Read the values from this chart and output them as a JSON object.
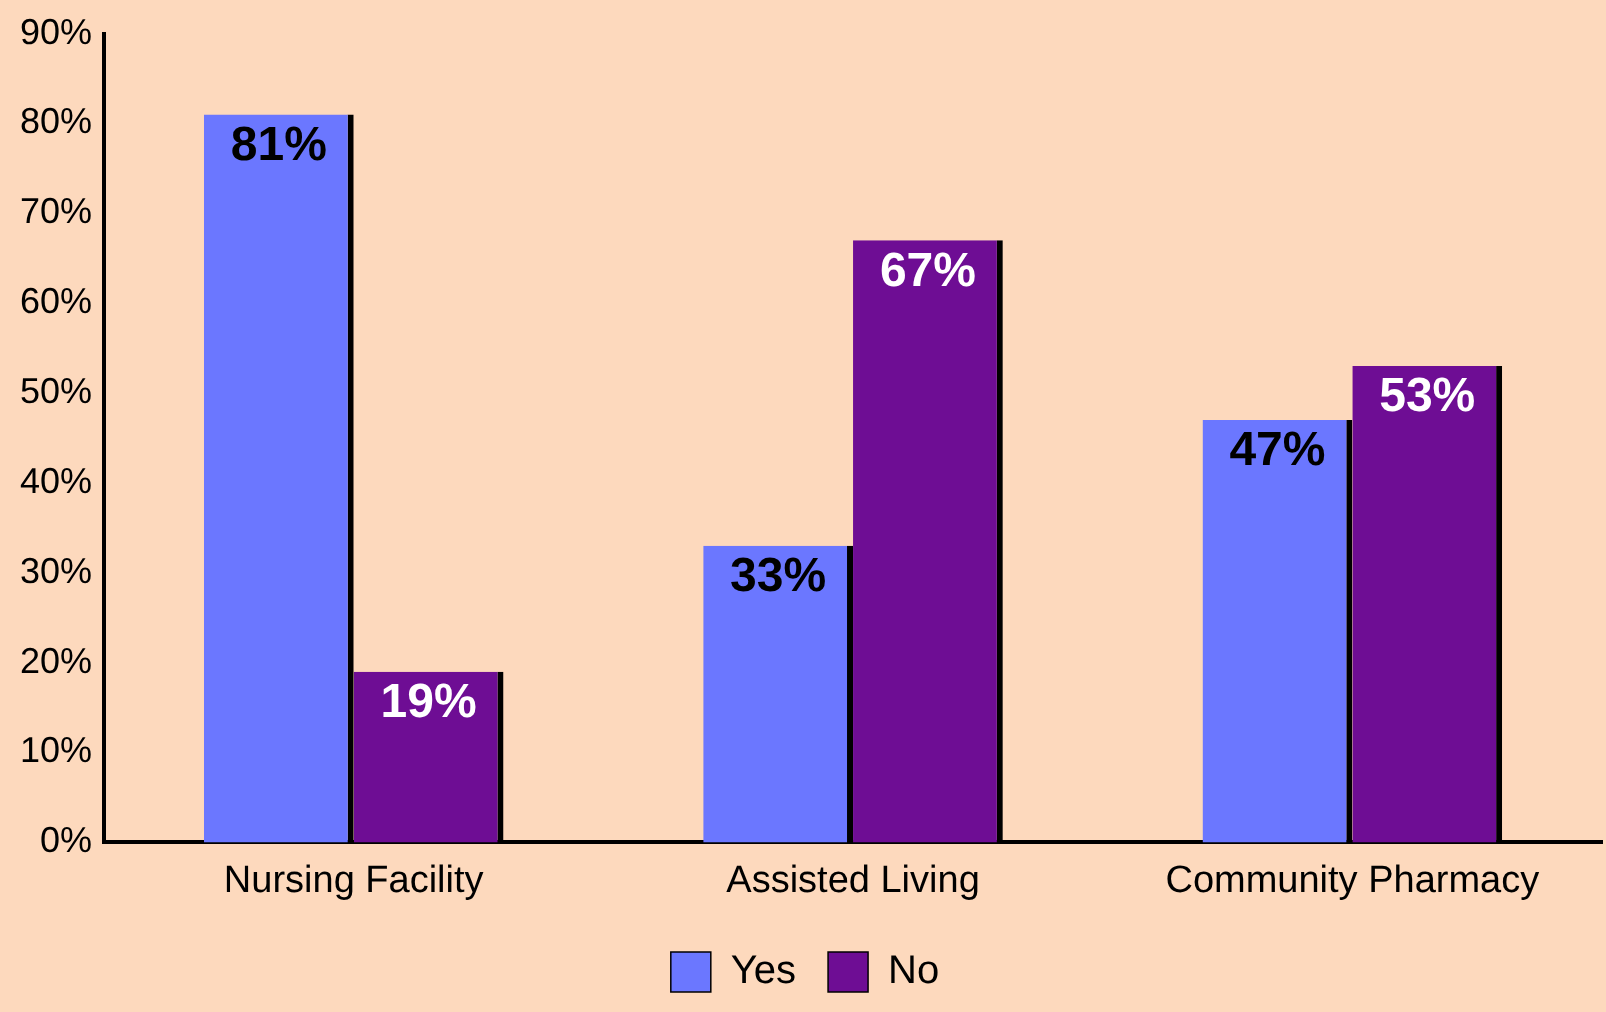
{
  "chart_data": {
    "type": "bar",
    "categories": [
      "Nursing Facility",
      "Assisted Living",
      "Community Pharmacy"
    ],
    "series": [
      {
        "name": "Yes",
        "color": "#6b77ff",
        "values": [
          81,
          33,
          47
        ],
        "value_labels": [
          "81%",
          "33%",
          "47%"
        ]
      },
      {
        "name": "No",
        "color": "#6e0d94",
        "values": [
          19,
          67,
          53
        ],
        "value_labels": [
          "19%",
          "67%",
          "53%"
        ]
      }
    ],
    "ylim": [
      0,
      90
    ],
    "yticks": [
      {
        "value": 0,
        "label": "0%"
      },
      {
        "value": 10,
        "label": "10%"
      },
      {
        "value": 20,
        "label": "20%"
      },
      {
        "value": 30,
        "label": "30%"
      },
      {
        "value": 40,
        "label": "40%"
      },
      {
        "value": 50,
        "label": "50%"
      },
      {
        "value": 60,
        "label": "60%"
      },
      {
        "value": 70,
        "label": "70%"
      },
      {
        "value": 80,
        "label": "80%"
      },
      {
        "value": 90,
        "label": "90%"
      }
    ],
    "grid": false,
    "legend": "bottom"
  }
}
